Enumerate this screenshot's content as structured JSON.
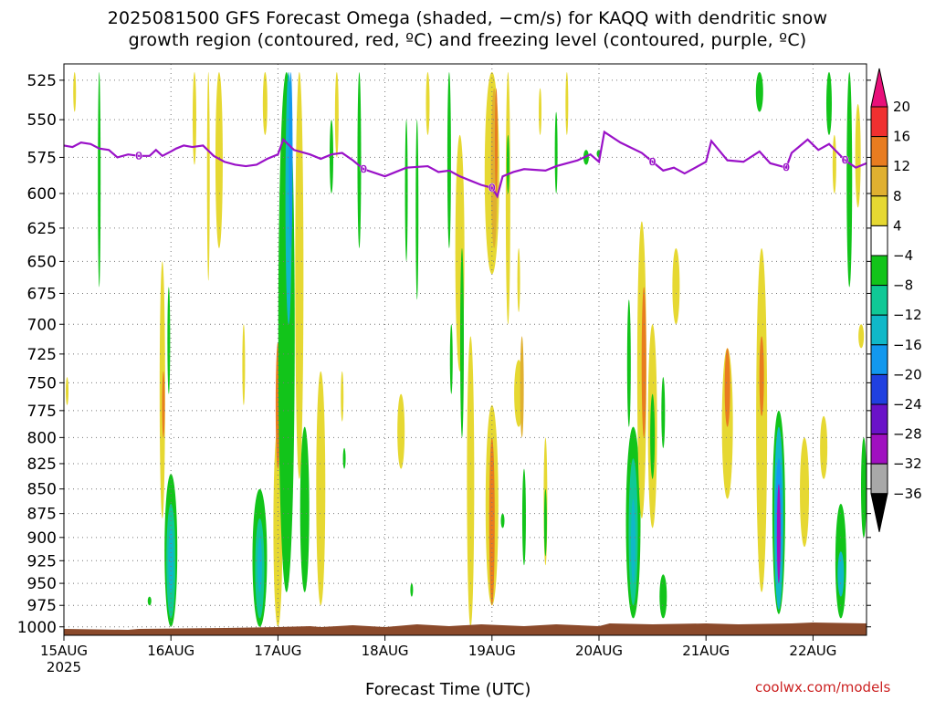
{
  "title": {
    "line1": "2025081500 GFS Forecast Omega (shaded, −cm/s) for KAQQ with dendritic snow",
    "line2": "growth region (contoured, red, ºC) and freezing level (contoured, purple, ºC)"
  },
  "xlabel": "Forecast Time (UTC)",
  "credit": "coolwx.com/models",
  "chart_data": {
    "type": "heatmap",
    "y_axis": {
      "label": "",
      "ticks": [
        525,
        550,
        575,
        600,
        625,
        650,
        675,
        700,
        725,
        750,
        775,
        800,
        825,
        850,
        875,
        900,
        925,
        950,
        975,
        1000
      ],
      "range": [
        515,
        1010
      ],
      "inverted": true,
      "scale": "log-pressure"
    },
    "x_axis": {
      "label": "Forecast Time (UTC)",
      "ticks": [
        "15AUG",
        "16AUG",
        "17AUG",
        "18AUG",
        "19AUG",
        "20AUG",
        "21AUG",
        "22AUG"
      ],
      "first_tick_year": "2025",
      "range_days": [
        0,
        7.5
      ]
    },
    "grid": true,
    "colorbar": {
      "levels": [
        20,
        16,
        12,
        8,
        4,
        -4,
        -8,
        -12,
        -16,
        -20,
        -24,
        -28,
        -32,
        -36
      ],
      "colors": [
        "#e8107a",
        "#f03030",
        "#e87c20",
        "#e0b030",
        "#e6d832",
        "#ffffff",
        "#12c41a",
        "#10c896",
        "#10b8c8",
        "#1298ee",
        "#2040e0",
        "#6a12c8",
        "#a010c0",
        "#a8a8a8",
        "#000000"
      ]
    },
    "freezing_level": {
      "color": "#9a12c8",
      "label": "0",
      "points": [
        [
          0,
          567
        ],
        [
          0.08,
          568
        ],
        [
          0.16,
          565
        ],
        [
          0.25,
          566
        ],
        [
          0.33,
          569
        ],
        [
          0.42,
          570
        ],
        [
          0.5,
          575
        ],
        [
          0.6,
          573
        ],
        [
          0.7,
          574
        ],
        [
          0.8,
          574
        ],
        [
          0.86,
          570
        ],
        [
          0.92,
          574
        ],
        [
          1.0,
          571
        ],
        [
          1.05,
          569
        ],
        [
          1.12,
          567
        ],
        [
          1.2,
          568
        ],
        [
          1.3,
          567
        ],
        [
          1.4,
          574
        ],
        [
          1.5,
          578
        ],
        [
          1.6,
          580
        ],
        [
          1.7,
          581
        ],
        [
          1.8,
          580
        ],
        [
          1.9,
          576
        ],
        [
          2.0,
          573
        ],
        [
          2.05,
          563
        ],
        [
          2.15,
          570
        ],
        [
          2.3,
          573
        ],
        [
          2.4,
          576
        ],
        [
          2.5,
          573
        ],
        [
          2.6,
          572
        ],
        [
          2.7,
          577
        ],
        [
          2.8,
          583
        ],
        [
          3.0,
          588
        ],
        [
          3.1,
          585
        ],
        [
          3.2,
          582
        ],
        [
          3.4,
          581
        ],
        [
          3.5,
          585
        ],
        [
          3.6,
          584
        ],
        [
          3.7,
          588
        ],
        [
          3.8,
          591
        ],
        [
          3.9,
          594
        ],
        [
          4.0,
          596
        ],
        [
          4.05,
          602
        ],
        [
          4.1,
          588
        ],
        [
          4.2,
          585
        ],
        [
          4.3,
          583
        ],
        [
          4.5,
          584
        ],
        [
          4.6,
          581
        ],
        [
          4.8,
          577
        ],
        [
          4.92,
          573
        ],
        [
          5.0,
          578
        ],
        [
          5.05,
          558
        ],
        [
          5.2,
          565
        ],
        [
          5.4,
          572
        ],
        [
          5.5,
          578
        ],
        [
          5.6,
          584
        ],
        [
          5.7,
          582
        ],
        [
          5.8,
          586
        ],
        [
          6.0,
          578
        ],
        [
          6.05,
          564
        ],
        [
          6.2,
          577
        ],
        [
          6.35,
          578
        ],
        [
          6.5,
          571
        ],
        [
          6.6,
          579
        ],
        [
          6.75,
          582
        ],
        [
          6.8,
          572
        ],
        [
          6.9,
          566
        ],
        [
          6.95,
          563
        ],
        [
          7.05,
          570
        ],
        [
          7.15,
          566
        ],
        [
          7.3,
          577
        ],
        [
          7.4,
          582
        ],
        [
          7.5,
          579
        ]
      ]
    }
  }
}
